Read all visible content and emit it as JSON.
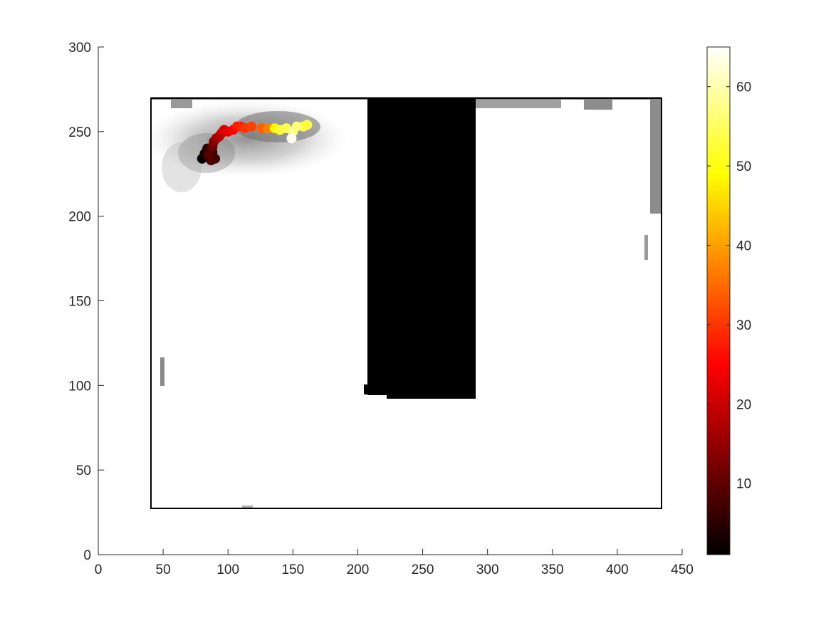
{
  "chart_data": {
    "type": "scatter",
    "title": "",
    "xlabel": "",
    "ylabel": "",
    "xlim": [
      0,
      450
    ],
    "ylim": [
      0,
      300
    ],
    "x_ticks": [
      0,
      50,
      100,
      150,
      200,
      250,
      300,
      350,
      400,
      450
    ],
    "y_ticks": [
      0,
      50,
      100,
      150,
      200,
      250,
      300
    ],
    "grid": false,
    "background_map": {
      "arena_outline": {
        "x": [
          41,
          433
        ],
        "y": [
          27,
          270
        ]
      },
      "occupied_block": {
        "x": [
          207,
          291
        ],
        "y": [
          91,
          270
        ]
      },
      "occupancy_shading": "grayscale"
    },
    "colorbar": {
      "colormap": "hot",
      "range": [
        1,
        65
      ],
      "ticks": [
        10,
        20,
        30,
        40,
        50,
        60
      ]
    },
    "points": [
      {
        "x": 80,
        "y": 234,
        "c": 1
      },
      {
        "x": 82,
        "y": 237,
        "c": 3
      },
      {
        "x": 84,
        "y": 240,
        "c": 5
      },
      {
        "x": 88,
        "y": 238,
        "c": 6
      },
      {
        "x": 90,
        "y": 234,
        "c": 7
      },
      {
        "x": 87,
        "y": 233,
        "c": 8
      },
      {
        "x": 85,
        "y": 236,
        "c": 9
      },
      {
        "x": 88,
        "y": 241,
        "c": 11
      },
      {
        "x": 89,
        "y": 244,
        "c": 13
      },
      {
        "x": 91,
        "y": 246,
        "c": 15
      },
      {
        "x": 93,
        "y": 247,
        "c": 17
      },
      {
        "x": 95,
        "y": 249,
        "c": 19
      },
      {
        "x": 97,
        "y": 251,
        "c": 21
      },
      {
        "x": 100,
        "y": 250,
        "c": 23
      },
      {
        "x": 104,
        "y": 251,
        "c": 25
      },
      {
        "x": 107,
        "y": 253,
        "c": 27
      },
      {
        "x": 110,
        "y": 253,
        "c": 28
      },
      {
        "x": 113,
        "y": 252,
        "c": 30
      },
      {
        "x": 118,
        "y": 253,
        "c": 31
      },
      {
        "x": 126,
        "y": 252,
        "c": 34
      },
      {
        "x": 131,
        "y": 252,
        "c": 37
      },
      {
        "x": 136,
        "y": 252,
        "c": 48
      },
      {
        "x": 140,
        "y": 251,
        "c": 52
      },
      {
        "x": 145,
        "y": 252,
        "c": 54
      },
      {
        "x": 150,
        "y": 250,
        "c": 58
      },
      {
        "x": 149,
        "y": 246,
        "c": 64
      },
      {
        "x": 153,
        "y": 253,
        "c": 57
      },
      {
        "x": 158,
        "y": 253,
        "c": 55
      },
      {
        "x": 161,
        "y": 254,
        "c": 53
      }
    ]
  }
}
